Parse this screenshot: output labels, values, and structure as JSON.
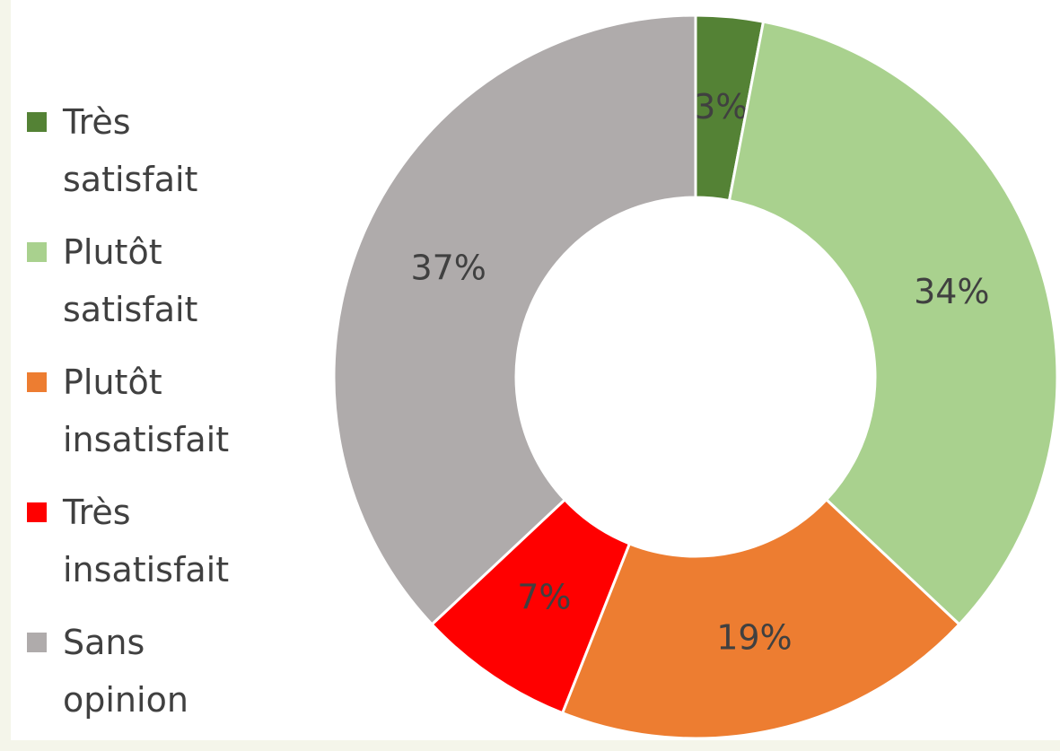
{
  "chart_data": {
    "type": "donut",
    "categories": [
      "Très satisfait",
      "Plutôt satisfait",
      "Plutôt insatisfait",
      "Très insatisfait",
      "Sans opinion"
    ],
    "values": [
      3,
      34,
      19,
      7,
      37
    ],
    "value_labels": [
      "3%",
      "34%",
      "19%",
      "7%",
      "37%"
    ],
    "colors": [
      "#548235",
      "#a9d18e",
      "#ed7d31",
      "#ff0000",
      "#afabab"
    ],
    "legend": "left"
  }
}
